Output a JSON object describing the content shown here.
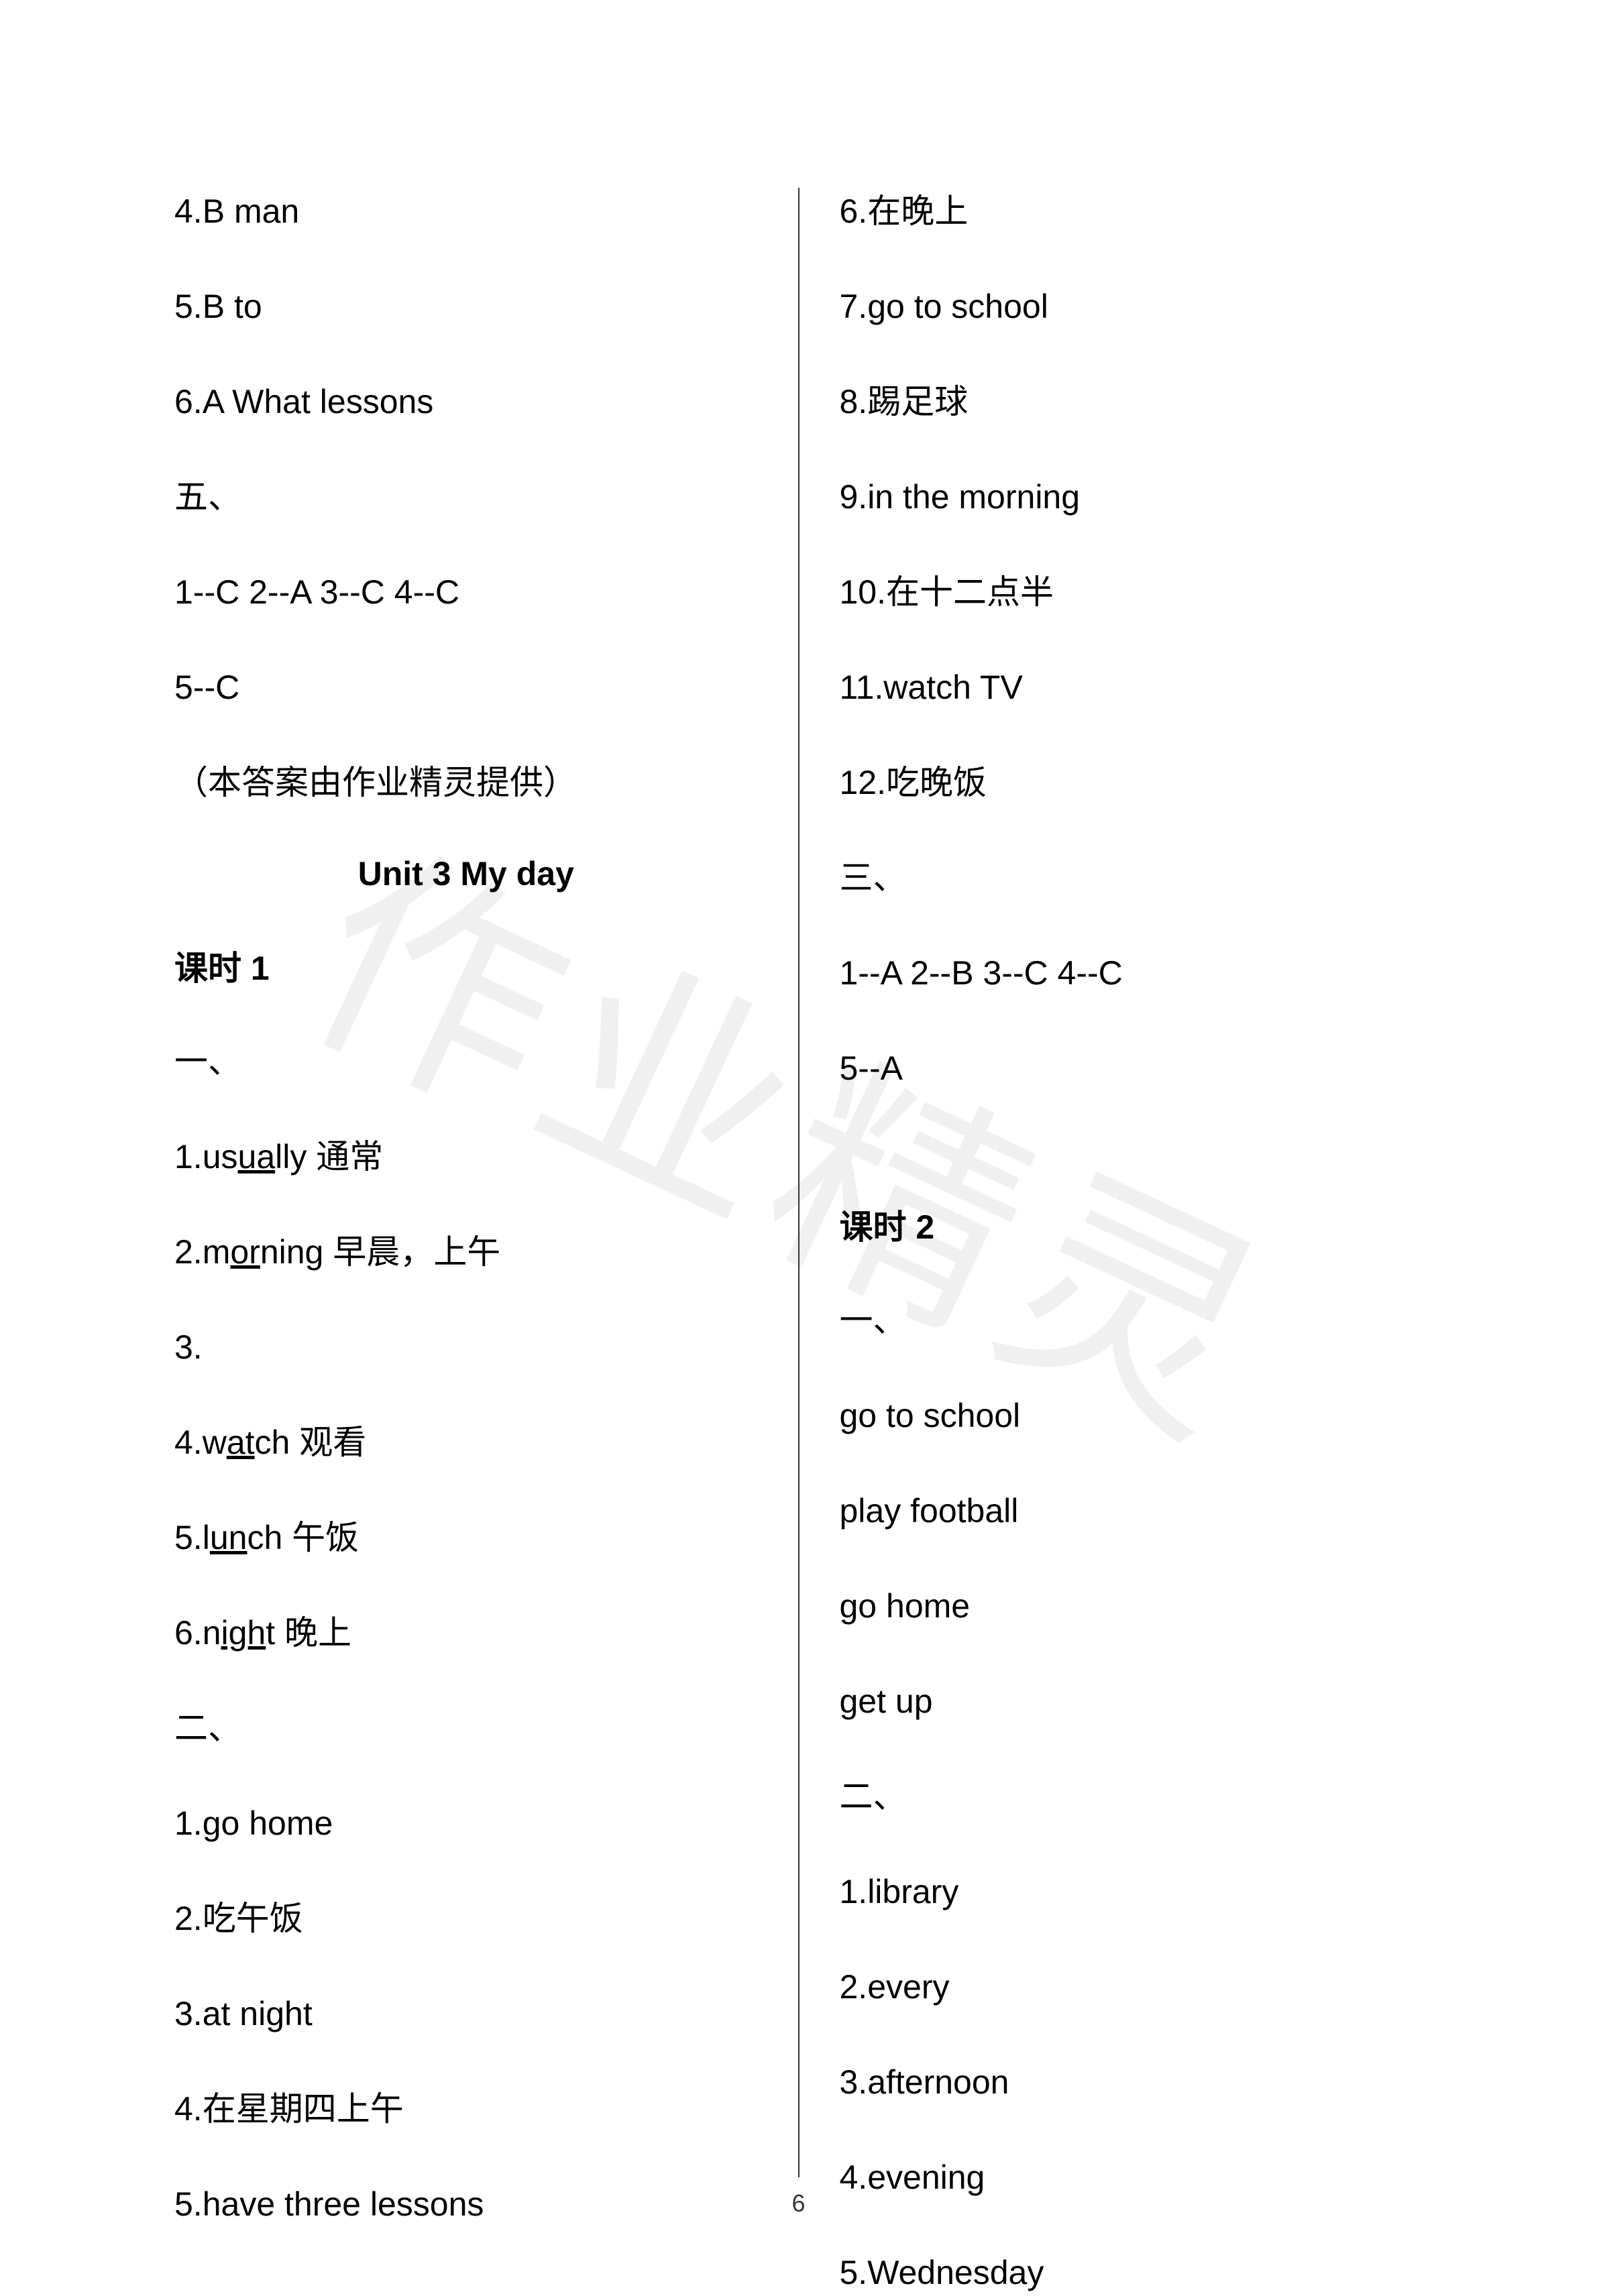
{
  "watermark": "作业精灵",
  "pageNumber": "6",
  "leftColumn": {
    "items": [
      {
        "type": "line",
        "text": "4.B   man"
      },
      {
        "type": "line",
        "text": "5.B   to"
      },
      {
        "type": "line",
        "text": "6.A   What lessons"
      },
      {
        "type": "line",
        "text": "五、"
      },
      {
        "type": "line",
        "text": "1--C   2--A   3--C   4--C"
      },
      {
        "type": "line",
        "text": "5--C"
      },
      {
        "type": "line",
        "text": "（本答案由作业精灵提供）"
      },
      {
        "type": "unit-title",
        "text": "Unit 3 My day"
      },
      {
        "type": "lesson-title",
        "text": "课时 1"
      },
      {
        "type": "line",
        "text": "一、"
      },
      {
        "type": "line-underline",
        "prefix": "1.us",
        "underlined": "ua",
        "suffix": "lly 通常"
      },
      {
        "type": "line-underline",
        "prefix": "2.m",
        "underlined": "or",
        "suffix": "ning 早晨，上午"
      },
      {
        "type": "line",
        "text": "3."
      },
      {
        "type": "line-underline",
        "prefix": "4.w",
        "underlined": "at",
        "suffix": "ch   观看"
      },
      {
        "type": "line-underline",
        "prefix": "5.l",
        "underlined": "un",
        "suffix": "ch   午饭"
      },
      {
        "type": "line-underline",
        "prefix": "6.n",
        "underlined": "igh",
        "suffix": "t   晚上"
      },
      {
        "type": "line",
        "text": "二、"
      },
      {
        "type": "line",
        "text": "1.go home"
      },
      {
        "type": "line",
        "text": "2.吃午饭"
      },
      {
        "type": "line",
        "text": "3.at night"
      },
      {
        "type": "line",
        "text": "4.在星期四上午"
      },
      {
        "type": "line",
        "text": "5.have three lessons"
      }
    ]
  },
  "rightColumn": {
    "items": [
      {
        "type": "line",
        "text": "6.在晚上"
      },
      {
        "type": "line",
        "text": "7.go to school"
      },
      {
        "type": "line",
        "text": "8.踢足球"
      },
      {
        "type": "line",
        "text": "9.in the morning"
      },
      {
        "type": "line",
        "text": "10.在十二点半"
      },
      {
        "type": "line",
        "text": "11.watch TV"
      },
      {
        "type": "line",
        "text": "12.吃晚饭"
      },
      {
        "type": "line",
        "text": "三、"
      },
      {
        "type": "line",
        "text": "1--A   2--B   3--C   4--C"
      },
      {
        "type": "line",
        "text": "5--A"
      },
      {
        "type": "spacer"
      },
      {
        "type": "lesson-title",
        "text": "课时 2"
      },
      {
        "type": "line",
        "text": "一、"
      },
      {
        "type": "line",
        "text": "go to school"
      },
      {
        "type": "line",
        "text": "play football"
      },
      {
        "type": "line",
        "text": "go home"
      },
      {
        "type": "line",
        "text": "get up"
      },
      {
        "type": "line",
        "text": "二、"
      },
      {
        "type": "line",
        "text": "1.library"
      },
      {
        "type": "line",
        "text": "2.every"
      },
      {
        "type": "line",
        "text": "3.afternoon"
      },
      {
        "type": "line",
        "text": "4.evening"
      },
      {
        "type": "line",
        "text": "5.Wednesday"
      }
    ]
  }
}
